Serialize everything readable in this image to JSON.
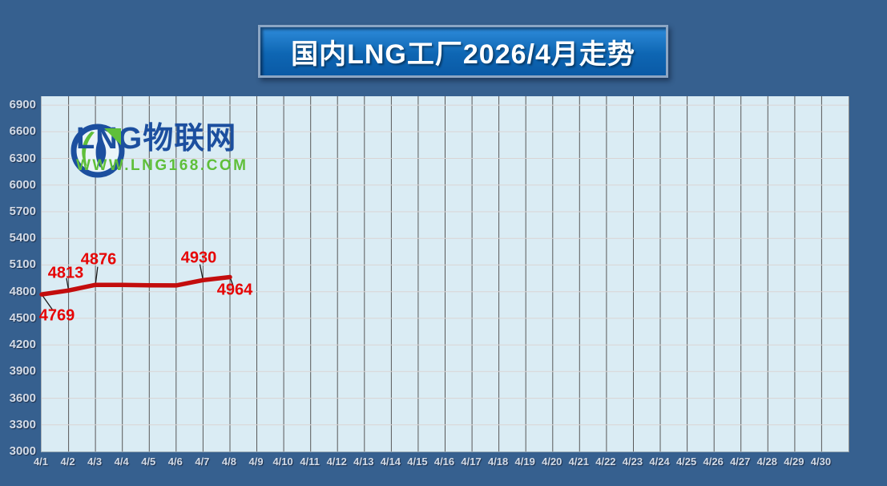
{
  "banner": {
    "title": "国内LNG工厂2026/4月走势"
  },
  "logo": {
    "brand": "LNG物联网",
    "url": "WWW.LNG168.COM"
  },
  "chart_data": {
    "type": "line",
    "title": "国内LNG工厂2026/4月走势",
    "categories": [
      "4/1",
      "4/2",
      "4/3",
      "4/4",
      "4/5",
      "4/6",
      "4/7",
      "4/8",
      "4/9",
      "4/10",
      "4/11",
      "4/12",
      "4/13",
      "4/14",
      "4/15",
      "4/16",
      "4/17",
      "4/18",
      "4/19",
      "4/20",
      "4/21",
      "4/22",
      "4/23",
      "4/24",
      "4/25",
      "4/26",
      "4/27",
      "4/28",
      "4/29",
      "4/30"
    ],
    "values": [
      4769,
      4813,
      4876,
      4875,
      4872,
      4870,
      4930,
      4964,
      null,
      null,
      null,
      null,
      null,
      null,
      null,
      null,
      null,
      null,
      null,
      null,
      null,
      null,
      null,
      null,
      null,
      null,
      null,
      null,
      null,
      null
    ],
    "labeled_points": [
      {
        "category": "4/1",
        "value": 4769,
        "cx": 70,
        "cy": 394
      },
      {
        "category": "4/2",
        "value": 4813,
        "cx": 81,
        "cy": 341
      },
      {
        "category": "4/3",
        "value": 4876,
        "cx": 122,
        "cy": 324
      },
      {
        "category": "4/7",
        "value": 4930,
        "cx": 247,
        "cy": 322
      },
      {
        "category": "4/8",
        "value": 4964,
        "cx": 292,
        "cy": 362
      }
    ],
    "ylim": [
      3000,
      7000
    ],
    "yticks": [
      3000,
      3300,
      3600,
      3900,
      4200,
      4500,
      4800,
      5100,
      5400,
      5700,
      6000,
      6300,
      6600,
      6900
    ],
    "grid": true,
    "legend": false,
    "colors": {
      "background": "#36608F",
      "plot_bg": "#DAECF4",
      "grid_vertical": "#585858",
      "grid_horizontal": "#D9D4D4",
      "line": "#C30D0D",
      "data_label": "#E60404",
      "axis_label": "#D3DCE8",
      "leader_line": "#1A1A1A",
      "logo_blue": "#1C4F9F",
      "logo_green": "#5FBF3A"
    }
  }
}
